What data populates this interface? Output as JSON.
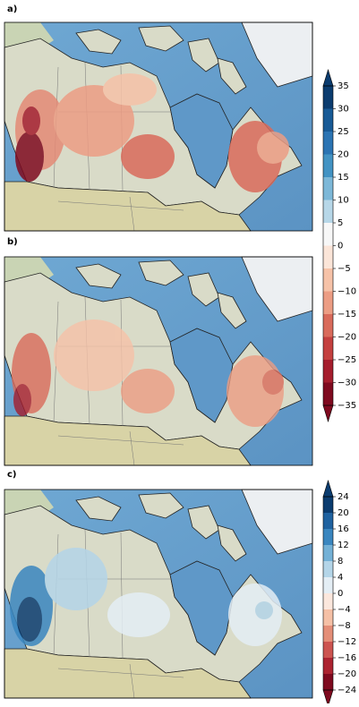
{
  "panels": [
    {
      "label": "a)"
    },
    {
      "label": "b)"
    },
    {
      "label": "c)"
    }
  ],
  "colorbars": [
    {
      "lim": [
        -35,
        35
      ],
      "extend": "both",
      "ticks": [
        35,
        30,
        25,
        20,
        15,
        10,
        5,
        0,
        {
          "value": -5,
          "label": "−5"
        },
        {
          "value": -10,
          "label": "−10"
        },
        {
          "value": -15,
          "label": "−15"
        },
        {
          "value": -20,
          "label": "−20"
        },
        {
          "value": -25,
          "label": "−25"
        },
        {
          "value": -30,
          "label": "−30"
        },
        {
          "value": -35,
          "label": "−35"
        }
      ],
      "colors": [
        "#0b3c6f",
        "#185a96",
        "#2b74b3",
        "#4393c3",
        "#7db8d8",
        "#b7d7e8",
        "#f7f7f7",
        "#fbe5d8",
        "#f6c2a8",
        "#ec9d84",
        "#d96b5b",
        "#c4403f",
        "#a51d2d",
        "#7f0a1f"
      ]
    },
    {
      "lim": [
        -24,
        24
      ],
      "extend": "both",
      "ticks": [
        24,
        20,
        16,
        12,
        8,
        4,
        0,
        {
          "value": -4,
          "label": "−4"
        },
        {
          "value": -8,
          "label": "−8"
        },
        {
          "value": -12,
          "label": "−12"
        },
        {
          "value": -16,
          "label": "−16"
        },
        {
          "value": -20,
          "label": "−20"
        },
        {
          "value": -24,
          "label": "−24"
        }
      ],
      "colors": [
        "#0b3c6f",
        "#1f62a0",
        "#3a86bf",
        "#74b1d6",
        "#b4d5e8",
        "#e4eef5",
        "#fbe7dd",
        "#f5c0a6",
        "#e48e78",
        "#cc5450",
        "#ac2330",
        "#7f0a1f"
      ]
    }
  ]
}
